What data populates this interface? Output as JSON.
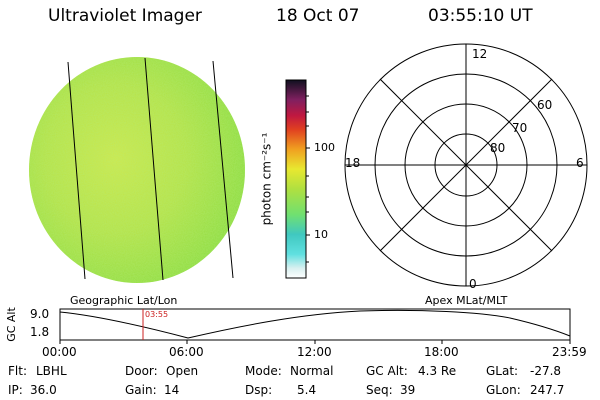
{
  "header": {
    "title": "Ultraviolet Imager",
    "date": "18 Oct 07",
    "time": "03:55:10 UT"
  },
  "colorbar": {
    "unit": "photon cm⁻²s⁻¹",
    "ticks": [
      "100",
      "10"
    ]
  },
  "polar_plot": {
    "labels_top": "12",
    "labels_left": "18",
    "labels_right": "6",
    "labels_bottom": "0",
    "lat_labels": [
      "60",
      "70",
      "80"
    ]
  },
  "plot_titles": {
    "left": "Geographic Lat/Lon",
    "right": "Apex  MLat/MLT"
  },
  "altitude_plot": {
    "ylabel": "GC Alt",
    "yticks": [
      "9.0",
      "1.8"
    ],
    "xticks": [
      "00:00",
      "06:00",
      "12:00",
      "18:00",
      "23:59"
    ],
    "marker_time": "03:55"
  },
  "info": {
    "row1": [
      {
        "label": "Flt:",
        "value": "LBHL"
      },
      {
        "label": "Door:",
        "value": "Open"
      },
      {
        "label": "Mode:",
        "value": "Normal"
      },
      {
        "label": "GC Alt:",
        "value": "4.3 Re"
      },
      {
        "label": "GLat:",
        "value": "-27.8"
      }
    ],
    "row2": [
      {
        "label": "IP:",
        "value": "36.0"
      },
      {
        "label": "Gain:",
        "value": "14"
      },
      {
        "label": "Dsp:",
        "value": "5.4"
      },
      {
        "label": "Seq:",
        "value": "39"
      },
      {
        "label": "GLon:",
        "value": "247.7"
      }
    ]
  },
  "colors": {
    "disk_green": "#9fe040",
    "disk_yellow": "#d8e84a",
    "marker": "#cc2222"
  }
}
